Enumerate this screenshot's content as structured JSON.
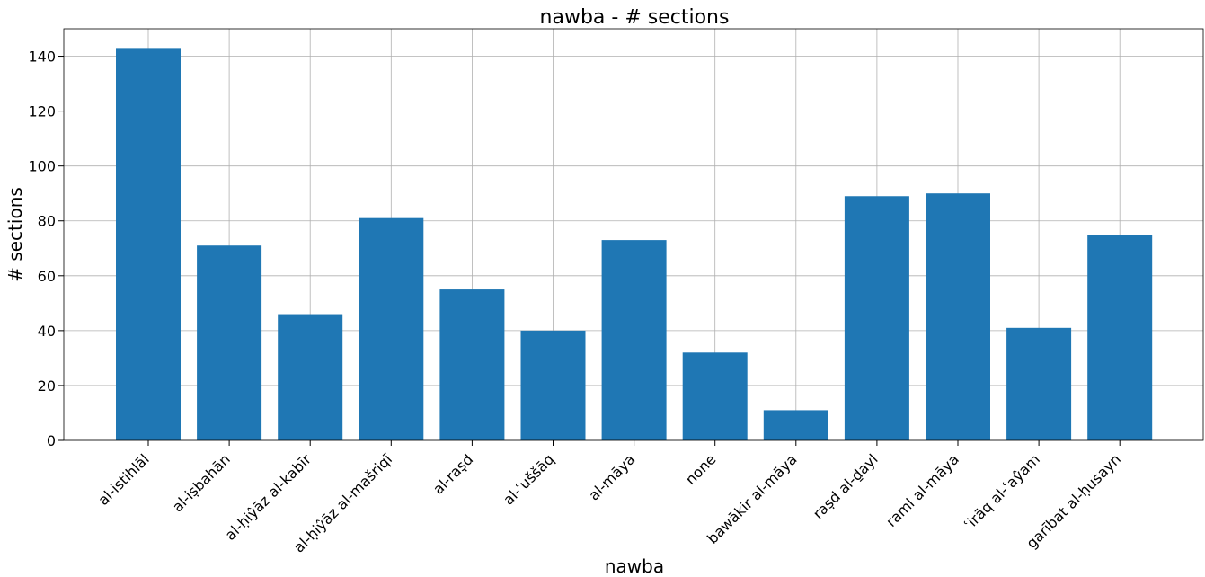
{
  "chart_data": {
    "type": "bar",
    "title": "nawba - # sections",
    "xlabel": "nawba",
    "ylabel": "# sections",
    "categories": [
      "al-istihlāl",
      "al-iṣbahān",
      "al-ḥiŷāz al-kabīr",
      "al-ḥiŷāz al-mašriqī",
      "al-raṣd",
      "al-ʿuššāq",
      "al-māya",
      "none",
      "bawākir al-māya",
      "raṣd al-ḏayl",
      "raml al-māya",
      "ʿirāq al-ʿaŷam",
      "garībat al-ḥusayn"
    ],
    "values": [
      143,
      71,
      46,
      81,
      55,
      40,
      73,
      32,
      11,
      89,
      90,
      41,
      75
    ],
    "ylim": [
      0,
      150
    ],
    "yticks": [
      0,
      20,
      40,
      60,
      80,
      100,
      120,
      140
    ],
    "grid": true,
    "bar_color": "#1f77b4"
  }
}
